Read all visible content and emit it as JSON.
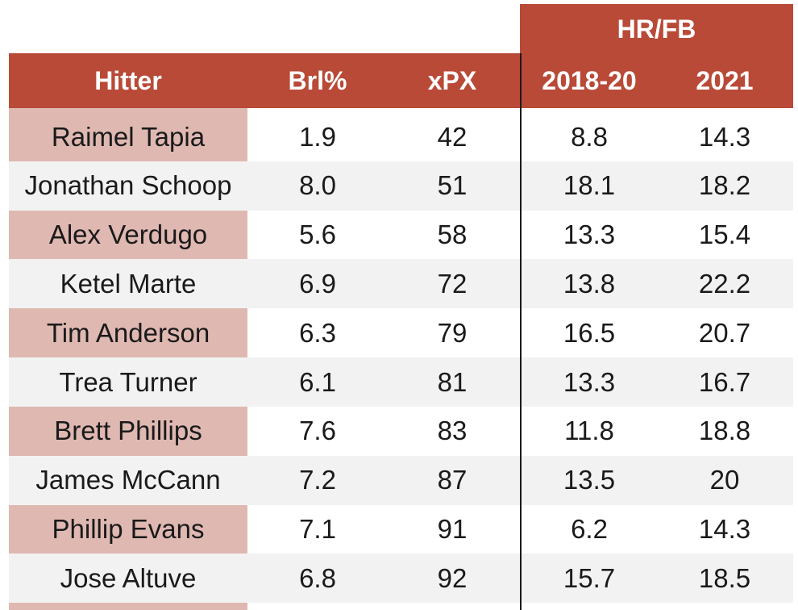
{
  "chart_data": {
    "type": "table",
    "group_header": "HR/FB",
    "columns": [
      "Hitter",
      "Brl%",
      "xPX",
      "2018-20",
      "2021"
    ],
    "rows": [
      [
        "Raimel Tapia",
        "1.9",
        "42",
        "8.8",
        "14.3"
      ],
      [
        "Jonathan Schoop",
        "8.0",
        "51",
        "18.1",
        "18.2"
      ],
      [
        "Alex Verdugo",
        "5.6",
        "58",
        "13.3",
        "15.4"
      ],
      [
        "Ketel Marte",
        "6.9",
        "72",
        "13.8",
        "22.2"
      ],
      [
        "Tim Anderson",
        "6.3",
        "79",
        "16.5",
        "20.7"
      ],
      [
        "Trea Turner",
        "6.1",
        "81",
        "13.3",
        "16.7"
      ],
      [
        "Brett Phillips",
        "7.6",
        "83",
        "11.8",
        "18.8"
      ],
      [
        "James McCann",
        "7.2",
        "87",
        "13.5",
        "20"
      ],
      [
        "Phillip Evans",
        "7.1",
        "91",
        "6.2",
        "14.3"
      ],
      [
        "Jose Altuve",
        "6.8",
        "92",
        "15.7",
        "18.5"
      ]
    ]
  },
  "colors": {
    "header_background": "#b94a37",
    "header_text": "#ffffff",
    "hitter_column_background": "#dfb8b2",
    "row_stripe": "#f2f2f2"
  }
}
